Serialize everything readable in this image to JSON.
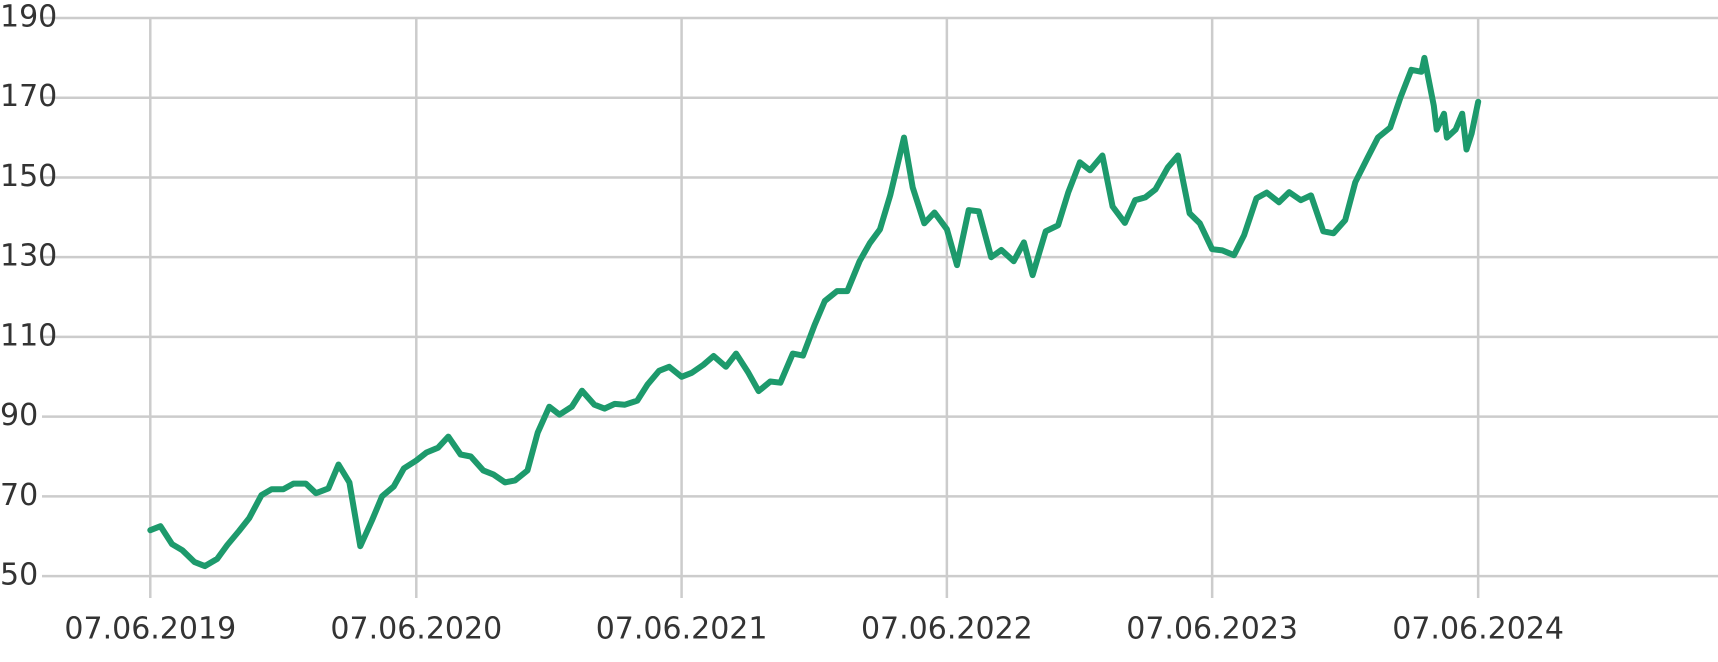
{
  "chart_data": {
    "type": "line",
    "color": "#1d9a6c",
    "grid": true,
    "xlim": [
      "2019-01-09",
      "2025-05-03"
    ],
    "xticks": [
      {
        "value": "2019-06-07",
        "label": "07.06.2019"
      },
      {
        "value": "2020-06-07",
        "label": "07.06.2020"
      },
      {
        "value": "2021-06-07",
        "label": "07.06.2021"
      },
      {
        "value": "2022-06-07",
        "label": "07.06.2022"
      },
      {
        "value": "2023-06-07",
        "label": "07.06.2023"
      },
      {
        "value": "2024-06-07",
        "label": "07.06.2024"
      }
    ],
    "ylim": [
      45,
      190
    ],
    "yticks": [
      50,
      70,
      90,
      110,
      130,
      150,
      170,
      190
    ],
    "x": [
      "2019-06-07",
      "2019-06-21",
      "2019-07-07",
      "2019-07-21",
      "2019-08-07",
      "2019-08-21",
      "2019-09-07",
      "2019-09-21",
      "2019-10-07",
      "2019-10-21",
      "2019-11-07",
      "2019-11-21",
      "2019-12-07",
      "2019-12-21",
      "2020-01-07",
      "2020-01-21",
      "2020-02-07",
      "2020-02-21",
      "2020-03-07",
      "2020-03-22",
      "2020-04-07",
      "2020-04-21",
      "2020-05-07",
      "2020-05-21",
      "2020-06-07",
      "2020-06-21",
      "2020-07-07",
      "2020-07-21",
      "2020-08-07",
      "2020-08-21",
      "2020-09-07",
      "2020-09-21",
      "2020-10-07",
      "2020-10-21",
      "2020-11-07",
      "2020-11-21",
      "2020-12-07",
      "2020-12-21",
      "2021-01-07",
      "2021-01-21",
      "2021-02-07",
      "2021-02-21",
      "2021-03-07",
      "2021-03-21",
      "2021-04-07",
      "2021-04-21",
      "2021-05-07",
      "2021-05-21",
      "2021-06-07",
      "2021-06-21",
      "2021-07-07",
      "2021-07-21",
      "2021-08-07",
      "2021-08-21",
      "2021-09-07",
      "2021-09-21",
      "2021-10-07",
      "2021-10-21",
      "2021-11-07",
      "2021-11-21",
      "2021-12-07",
      "2021-12-21",
      "2022-01-07",
      "2022-01-21",
      "2022-02-07",
      "2022-02-21",
      "2022-03-07",
      "2022-03-21",
      "2022-04-09",
      "2022-04-21",
      "2022-05-07",
      "2022-05-21",
      "2022-06-07",
      "2022-06-21",
      "2022-07-07",
      "2022-07-21",
      "2022-08-07",
      "2022-08-21",
      "2022-09-07",
      "2022-09-21",
      "2022-10-03",
      "2022-10-21",
      "2022-11-07",
      "2022-11-21",
      "2022-12-07",
      "2022-12-21",
      "2023-01-07",
      "2023-01-21",
      "2023-02-07",
      "2023-02-21",
      "2023-03-07",
      "2023-03-21",
      "2023-04-07",
      "2023-04-21",
      "2023-05-07",
      "2023-05-21",
      "2023-06-07",
      "2023-06-21",
      "2023-07-07",
      "2023-07-21",
      "2023-08-07",
      "2023-08-21",
      "2023-09-07",
      "2023-09-21",
      "2023-10-07",
      "2023-10-21",
      "2023-11-07",
      "2023-11-21",
      "2023-12-07",
      "2023-12-21",
      "2024-01-07",
      "2024-01-21",
      "2024-02-07",
      "2024-02-21",
      "2024-03-07",
      "2024-03-21",
      "2024-03-25",
      "2024-04-07",
      "2024-04-11",
      "2024-04-21",
      "2024-04-25",
      "2024-05-07",
      "2024-05-16",
      "2024-05-22",
      "2024-05-29",
      "2024-06-07"
    ],
    "values": [
      61.5,
      62.5,
      58,
      56.5,
      53.5,
      52.5,
      54.3,
      57.8,
      61.3,
      64.5,
      70.3,
      71.8,
      71.8,
      73.2,
      73.2,
      70.8,
      72,
      78,
      73.5,
      57.5,
      64,
      70,
      72.5,
      77,
      79,
      81,
      82.2,
      85,
      80.5,
      80,
      76.5,
      75.5,
      73.5,
      74,
      76.5,
      86,
      92.5,
      90.5,
      92.5,
      96.5,
      93,
      92,
      93.2,
      93,
      94,
      98,
      101.5,
      102.5,
      100,
      101,
      103,
      105.2,
      102.5,
      105.8,
      101,
      96.4,
      98.8,
      98.5,
      105.8,
      105.3,
      113,
      119,
      121.5,
      121.5,
      129,
      133.5,
      137,
      145.5,
      160,
      147.5,
      138.5,
      141.2,
      137,
      128,
      141.8,
      141.5,
      130,
      131.8,
      129,
      133.7,
      125.5,
      136.5,
      138,
      146.2,
      153.8,
      151.8,
      155.5,
      142.7,
      138.6,
      144.3,
      145,
      147,
      152.5,
      155.5,
      141,
      138.5,
      132,
      131.7,
      130.5,
      135.5,
      144.8,
      146.2,
      143.8,
      146.3,
      144.3,
      145.5,
      136.5,
      136,
      139.3,
      148.8,
      155,
      160,
      162.5,
      170,
      177,
      176.5,
      180,
      168,
      162,
      166,
      160,
      162,
      166,
      157,
      161,
      169
    ]
  }
}
